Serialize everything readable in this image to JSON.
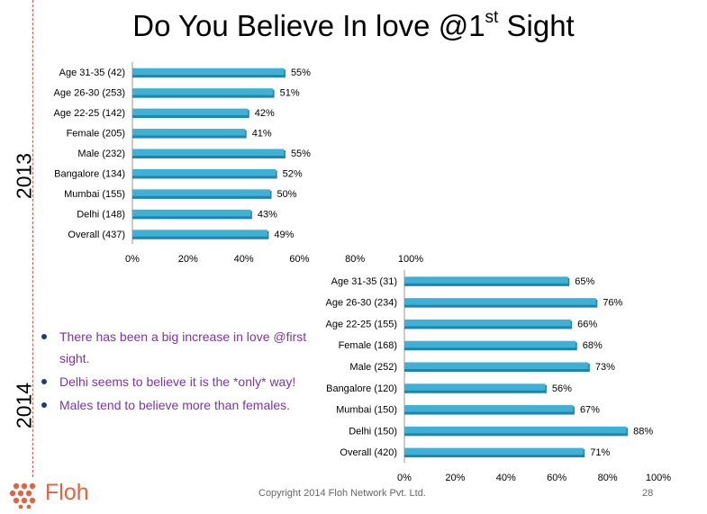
{
  "slide": {
    "title_main": "Do You Believe In love @1",
    "title_sup": "st",
    "title_end": " Sight",
    "copyright": "Copyright 2014 Floh Network Pvt. Ltd.",
    "page_number": "28",
    "logo_text": "Floh",
    "bullets": [
      "There has been a big increase in love @first sight.",
      "Delhi seems to believe it is the *only* way!",
      "Males tend to believe more than females."
    ],
    "colors": {
      "bar": "#3fb0d6",
      "bar_dark": "#1f86ab",
      "bullet_text": "#7b35a8",
      "logo": "#e8613c",
      "divider": "#d9534f"
    }
  },
  "chart_data": [
    {
      "type": "bar",
      "orientation": "horizontal",
      "group_label": "2013",
      "categories": [
        "Age 31-35 (42)",
        "Age 26-30 (253)",
        "Age 22-25 (142)",
        "Female (205)",
        "Male (232)",
        "Bangalore (134)",
        "Mumbai (155)",
        "Delhi (148)",
        "Overall (437)"
      ],
      "values": [
        55,
        51,
        42,
        41,
        55,
        52,
        50,
        43,
        49
      ],
      "value_labels": [
        "55%",
        "51%",
        "42%",
        "41%",
        "55%",
        "52%",
        "50%",
        "43%",
        "49%"
      ],
      "xlim": [
        0,
        100
      ],
      "xticks": [
        "0%",
        "20%",
        "40%",
        "60%",
        "80%",
        "100%"
      ],
      "grid": false
    },
    {
      "type": "bar",
      "orientation": "horizontal",
      "group_label": "2014",
      "categories": [
        "Age 31-35 (31)",
        "Age 26-30 (234)",
        "Age 22-25 (155)",
        "Female (168)",
        "Male (252)",
        "Bangalore (120)",
        "Mumbai (150)",
        "Delhi (150)",
        "Overall (420)"
      ],
      "values": [
        65,
        76,
        66,
        68,
        73,
        56,
        67,
        88,
        71
      ],
      "value_labels": [
        "65%",
        "76%",
        "66%",
        "68%",
        "73%",
        "56%",
        "67%",
        "88%",
        "71%"
      ],
      "xlim": [
        0,
        100
      ],
      "xticks": [
        "0%",
        "20%",
        "40%",
        "60%",
        "80%",
        "100%"
      ],
      "grid": false
    }
  ]
}
